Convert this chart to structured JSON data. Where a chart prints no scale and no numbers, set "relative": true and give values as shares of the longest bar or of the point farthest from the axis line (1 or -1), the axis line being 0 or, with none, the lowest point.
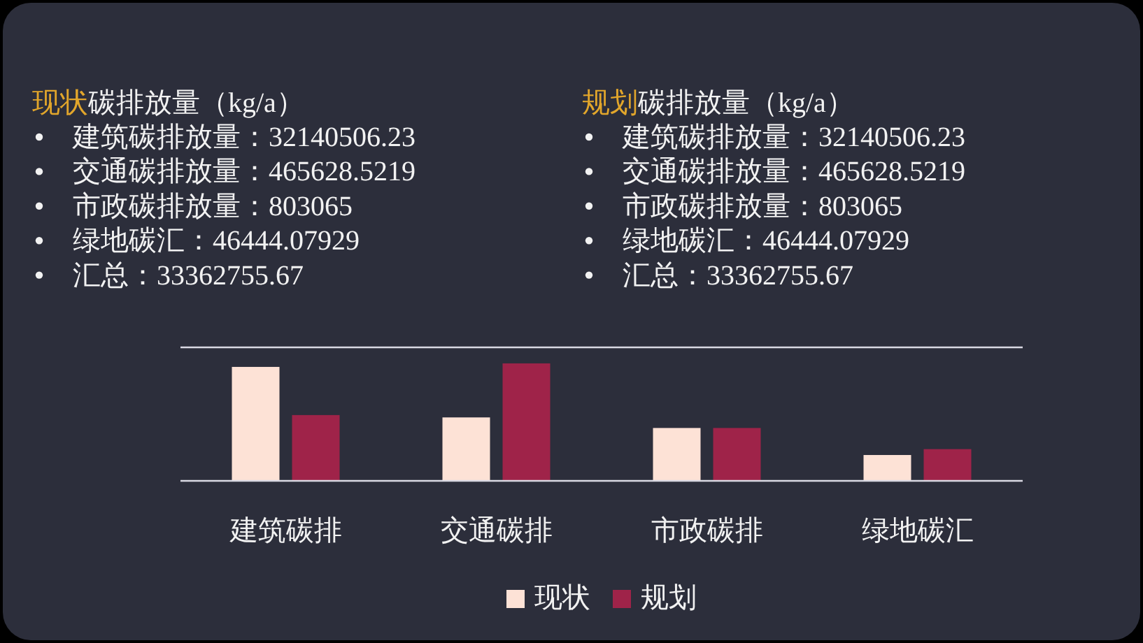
{
  "chart_data": {
    "type": "bar",
    "relative": true,
    "categories": [
      "建筑碳排",
      "交通碳排",
      "市政碳排",
      "绿地碳汇"
    ],
    "series": [
      {
        "name": "现状",
        "color": "#fde2d6",
        "values": [
          0.97,
          0.54,
          0.45,
          0.22
        ]
      },
      {
        "name": "规划",
        "color": "#9f2349",
        "values": [
          0.56,
          1,
          0.45,
          0.27
        ]
      }
    ],
    "legend": "bottom",
    "annotations": [
      "现状",
      "碳排放量（kg/a）",
      "建筑碳排放量：32140506.23",
      "交通碳排放量：465628.5219",
      "市政碳排放量：803065",
      "绿地碳汇：46444.07929",
      "汇总：33362755.67",
      "规划",
      "碳排放量（kg/a）",
      "建筑碳排放量：32140506.23",
      "交通碳排放量：465628.5219",
      "市政碳排放量：803065",
      "绿地碳汇：46444.07929",
      "汇总：33362755.67"
    ]
  }
}
